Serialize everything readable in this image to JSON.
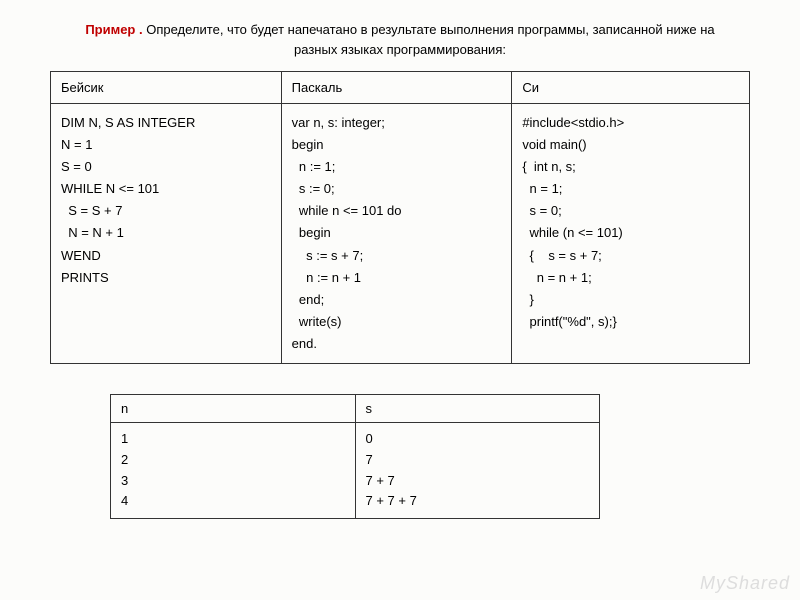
{
  "title": {
    "bold": "Пример .",
    "rest": " Определите, что будет напечатано в результате выполнения программы, записанной ниже на разных языках программирования:"
  },
  "mainTable": {
    "headers": [
      "Бейсик",
      "Паскаль",
      "Си"
    ],
    "code": {
      "basic": "DIM N, S AS INTEGER\nN = 1\nS = 0\nWHILE N <= 101\n  S = S + 7\n  N = N + 1\nWEND\nPRINTS",
      "pascal": "var n, s: integer;\nbegin\n  n := 1;\n  s := 0;\n  while n <= 101 do\n  begin\n    s := s + 7;\n    n := n + 1\n  end;\n  write(s)\nend.",
      "c": "#include<stdio.h>\nvoid main()\n{  int n, s;\n  n = 1;\n  s = 0;\n  while (n <= 101)\n  {    s = s + 7;\n    n = n + 1;\n  }\n  printf(\"%d\", s);}"
    }
  },
  "traceTable": {
    "headers": [
      "n",
      "s"
    ],
    "col_n": "1\n2\n3\n4",
    "col_s": "0\n7\n7 + 7\n7 + 7 + 7"
  },
  "watermark": "MyShared"
}
